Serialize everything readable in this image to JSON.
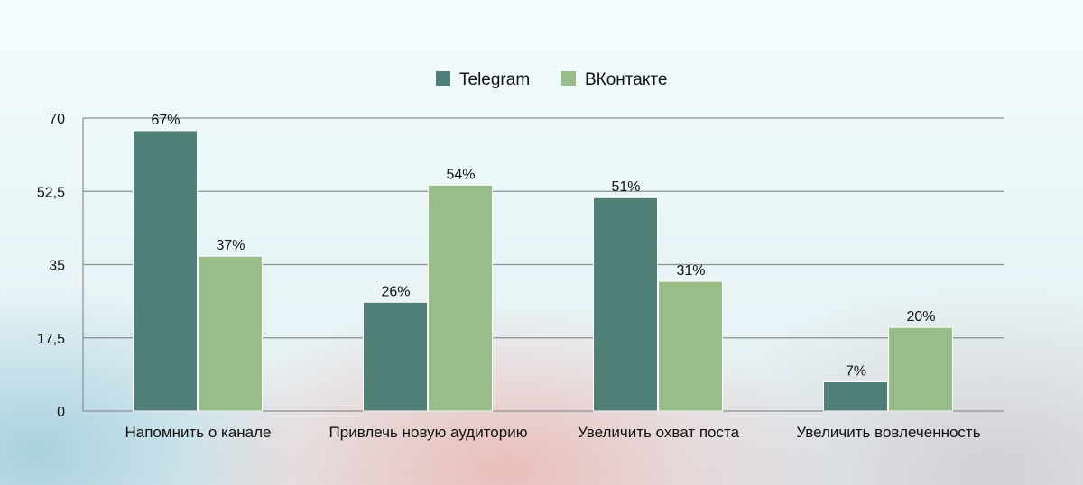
{
  "chart_data": {
    "type": "bar",
    "categories": [
      "Напомнить о канале",
      "Привлечь новую аудиторию",
      "Увеличить охват поста",
      "Увеличить вовлеченность"
    ],
    "series": [
      {
        "name": "Telegram",
        "values": [
          67,
          26,
          51,
          7
        ],
        "labels": [
          "67%",
          "26%",
          "51%",
          "7%"
        ],
        "color": "#4f7f76"
      },
      {
        "name": "ВКонтакте",
        "values": [
          37,
          54,
          31,
          20
        ],
        "labels": [
          "37%",
          "54%",
          "31%",
          "20%"
        ],
        "color": "#98bd88"
      }
    ],
    "ylim": [
      0,
      70
    ],
    "yticks": [
      0,
      17.5,
      35,
      52.5,
      70
    ],
    "ytick_labels": [
      "0",
      "17,5",
      "35",
      "52,5",
      "70"
    ],
    "grid": true,
    "legend_position": "top-center"
  }
}
